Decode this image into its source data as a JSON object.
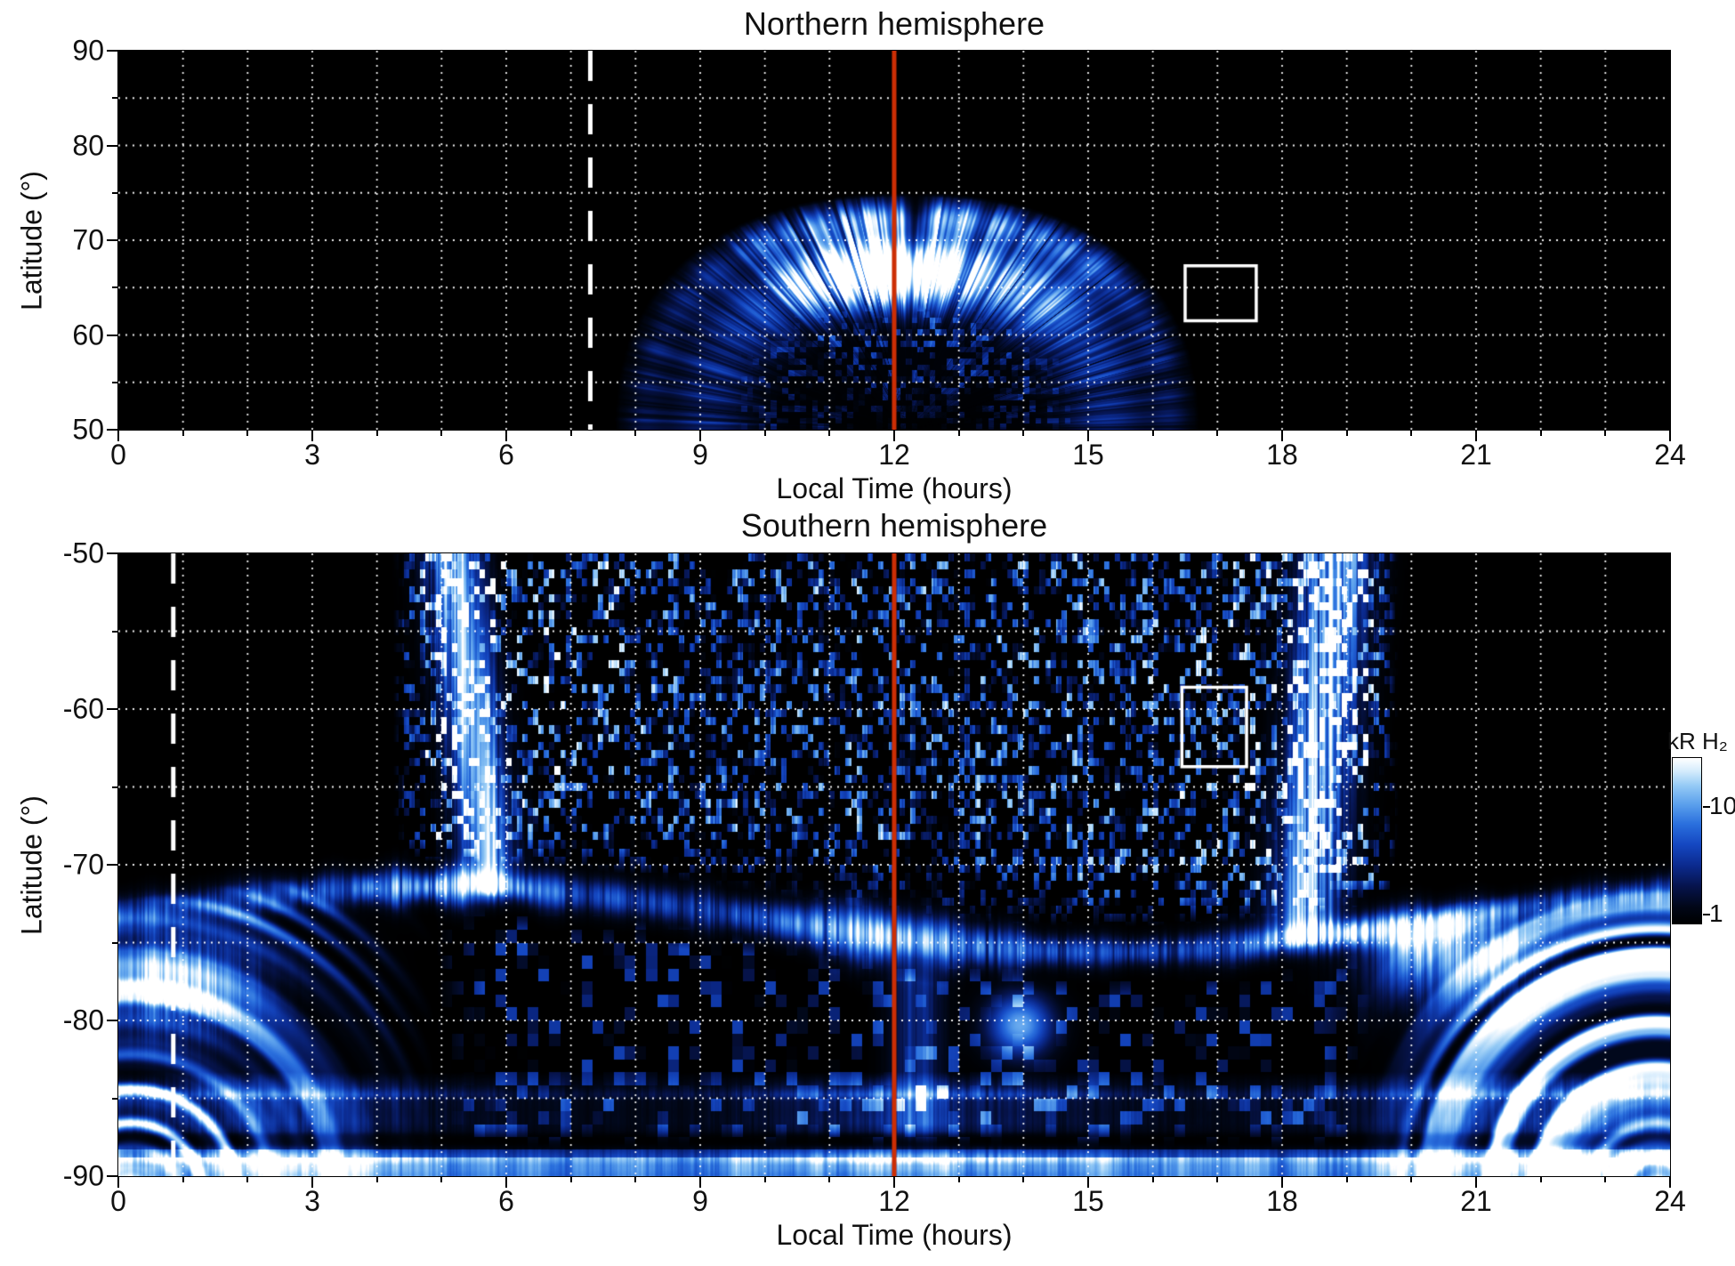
{
  "chart_data": [
    {
      "type": "heatmap",
      "title": "Northern hemisphere",
      "xlabel": "Local Time (hours)",
      "ylabel": "Latitude (°)",
      "x_range": [
        0,
        24
      ],
      "y_range": [
        50,
        90
      ],
      "xticks": [
        0,
        3,
        6,
        9,
        12,
        15,
        18,
        21,
        24
      ],
      "yticks": [
        90,
        80,
        70,
        60,
        50
      ],
      "grid": {
        "style": "white dotted",
        "x_step_hours": 1,
        "y_step_degrees": 5
      },
      "value_units": "kR H₂",
      "color_scale": "log, ~1 to >10 kR, black to blue to white",
      "annotations": [
        {
          "type": "vertical-line",
          "x": 12,
          "style": "solid",
          "color": "#cc2e04",
          "name": "noon-meridian-line"
        },
        {
          "type": "vertical-line",
          "x": 7.3,
          "style": "dashed",
          "color": "#ffffff",
          "name": "dashed-reference-line"
        },
        {
          "type": "box",
          "x": [
            16.5,
            17.6
          ],
          "y": [
            61.5,
            67.3
          ],
          "color": "#ffffff",
          "name": "highlight-box"
        }
      ],
      "features": [
        "Black (no coverage) outside a dayside dome spanning about 7.8 to 16.6 h local time that reaches about 74 deg latitude near noon",
        "Bright auroral emission band between about 60 and 73 deg latitude; brightest (white, >10 kR) near 10.5-12.5 h at 63-71 deg",
        "Fainter patchy emission fills the dome interior down to 50 deg around 9-15 h",
        "Fine radial striping from individual observation swaths; narrow dark gap wedge just after 12 h"
      ]
    },
    {
      "type": "heatmap",
      "title": "Southern hemisphere",
      "xlabel": "Local Time (hours)",
      "ylabel": "Latitude (°)",
      "x_range": [
        0,
        24
      ],
      "y_range": [
        -90,
        -50
      ],
      "xticks": [
        0,
        3,
        6,
        9,
        12,
        15,
        18,
        21,
        24
      ],
      "yticks": [
        -50,
        -60,
        -70,
        -80,
        -90
      ],
      "grid": {
        "style": "white dotted",
        "x_step_hours": 1,
        "y_step_degrees": 5
      },
      "value_units": "kR H₂",
      "color_scale": "log, ~1 to >10 kR, black to blue to white",
      "annotations": [
        {
          "type": "vertical-line",
          "x": 12,
          "style": "solid",
          "color": "#cc2e04",
          "name": "noon-meridian-line"
        },
        {
          "type": "vertical-line",
          "x": 0.85,
          "style": "dashed",
          "color": "#ffffff",
          "name": "dashed-reference-line"
        },
        {
          "type": "box",
          "x": [
            16.45,
            17.45
          ],
          "y": [
            -63.7,
            -58.6
          ],
          "color": "#ffffff",
          "name": "highlight-box"
        }
      ],
      "features": [
        "Continuous bright auroral arc near -71 to -75 deg at all local times; brightest (white) near 4-6 h, 10-13 h and 18-20 h",
        "Dense speckled emission from -50 deg down to the arc between about 4.5 and 19.5 h",
        "Bright striated swath bands near 5-6 h and 18-19 h reaching up to -50 deg",
        "Fan-shaped concentric striped emission on the polar side (below about -75 deg) near 0-5 h and 19-24 h, with white streaks near 0-2 h and 20-21 h",
        "Horizontally banded emission between -84 and -88 deg and a continuous bright band along -89 to -90 deg",
        "Black no-coverage corners above about -70 deg before about 4.3 h and after about 19.8 h"
      ]
    }
  ],
  "colorbar": {
    "label": "kR H₂",
    "tick_labels": [
      "10",
      "1"
    ],
    "scale": "log",
    "orientation": "vertical, white (high) at top to black (low) at bottom"
  },
  "colors": {
    "plot_background": "#000000",
    "grid": "#ffffff",
    "noon_line": "#cc2e04",
    "dashed_line": "#ffffff",
    "highlight_box": "#ffffff",
    "colormap": [
      [
        0,
        "#000000"
      ],
      [
        0.1,
        "#010718"
      ],
      [
        0.22,
        "#06134a"
      ],
      [
        0.35,
        "#0b2a8e"
      ],
      [
        0.48,
        "#1548c2"
      ],
      [
        0.6,
        "#2a6fdd"
      ],
      [
        0.72,
        "#5ba0ec"
      ],
      [
        0.83,
        "#93c9f5"
      ],
      [
        0.92,
        "#d4ebfc"
      ],
      [
        1,
        "#ffffff"
      ]
    ]
  }
}
